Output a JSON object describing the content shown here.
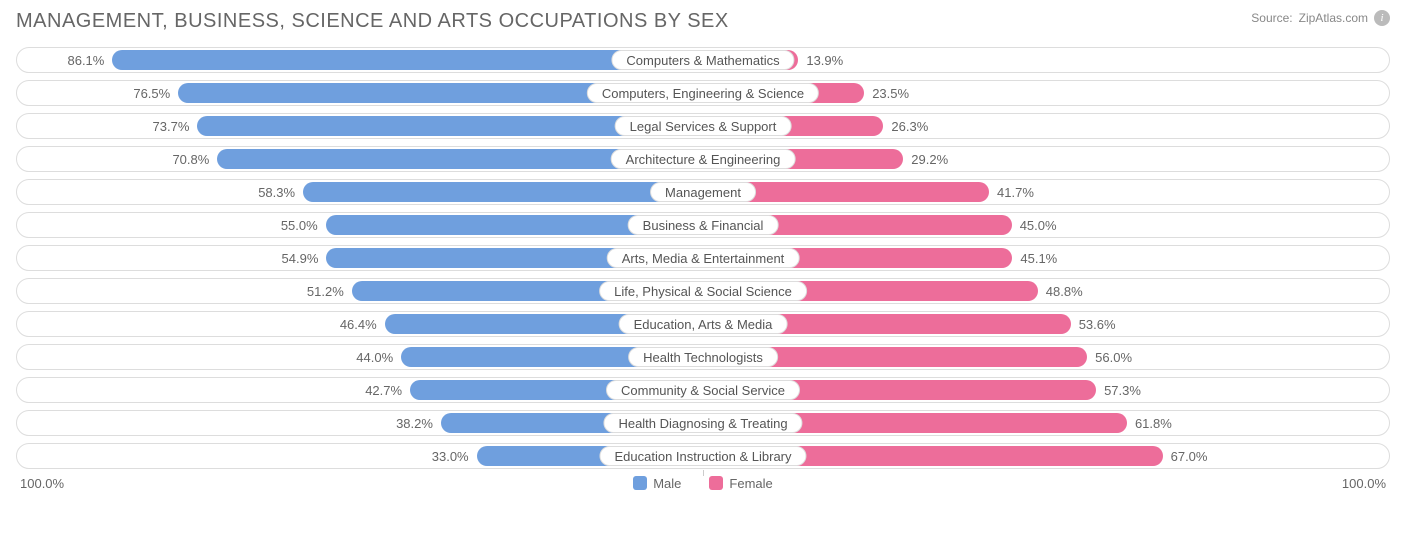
{
  "title": "MANAGEMENT, BUSINESS, SCIENCE AND ARTS OCCUPATIONS BY SEX",
  "source_label": "Source:",
  "source_name": "ZipAtlas.com",
  "chart": {
    "type": "diverging-bar",
    "male_color": "#6f9fde",
    "female_color": "#ed6d9a",
    "track_border": "#dddddd",
    "background_color": "#ffffff",
    "text_color": "#666666",
    "axis_left": "100.0%",
    "axis_right": "100.0%",
    "rows": [
      {
        "label": "Computers & Mathematics",
        "male": 86.1,
        "female": 13.9
      },
      {
        "label": "Computers, Engineering & Science",
        "male": 76.5,
        "female": 23.5
      },
      {
        "label": "Legal Services & Support",
        "male": 73.7,
        "female": 26.3
      },
      {
        "label": "Architecture & Engineering",
        "male": 70.8,
        "female": 29.2
      },
      {
        "label": "Management",
        "male": 58.3,
        "female": 41.7
      },
      {
        "label": "Business & Financial",
        "male": 55.0,
        "female": 45.0
      },
      {
        "label": "Arts, Media & Entertainment",
        "male": 54.9,
        "female": 45.1
      },
      {
        "label": "Life, Physical & Social Science",
        "male": 51.2,
        "female": 48.8
      },
      {
        "label": "Education, Arts & Media",
        "male": 46.4,
        "female": 53.6
      },
      {
        "label": "Health Technologists",
        "male": 44.0,
        "female": 56.0
      },
      {
        "label": "Community & Social Service",
        "male": 42.7,
        "female": 57.3
      },
      {
        "label": "Health Diagnosing & Treating",
        "male": 38.2,
        "female": 61.8
      },
      {
        "label": "Education Instruction & Library",
        "male": 33.0,
        "female": 67.0
      }
    ]
  },
  "legend": {
    "male_label": "Male",
    "female_label": "Female"
  }
}
